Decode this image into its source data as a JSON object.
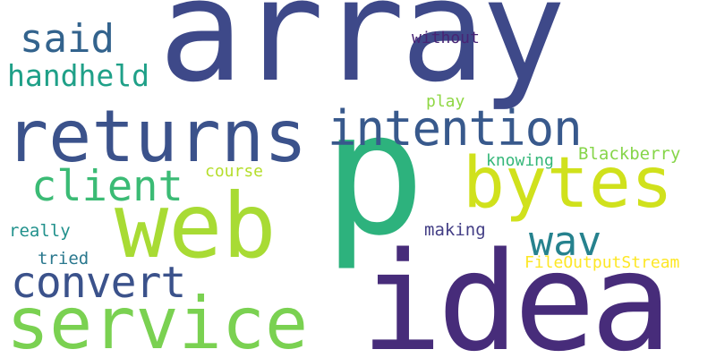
{
  "words": [
    {
      "text": "array",
      "color": "#3e4989"
    },
    {
      "text": "p",
      "color": "#2db27d"
    },
    {
      "text": "idea",
      "color": "#472c7a"
    },
    {
      "text": "web",
      "color": "#a8db34"
    },
    {
      "text": "service",
      "color": "#7ad151"
    },
    {
      "text": "returns",
      "color": "#3b528b"
    },
    {
      "text": "bytes",
      "color": "#d0e11c"
    },
    {
      "text": "intention",
      "color": "#38598c"
    },
    {
      "text": "convert",
      "color": "#3b528b"
    },
    {
      "text": "client",
      "color": "#3bbb75"
    },
    {
      "text": "wav",
      "color": "#26828e"
    },
    {
      "text": "said",
      "color": "#33638d"
    },
    {
      "text": "handheld",
      "color": "#1fa088"
    },
    {
      "text": "Blackberry",
      "color": "#86d549"
    },
    {
      "text": "without",
      "color": "#482475"
    },
    {
      "text": "play",
      "color": "#8fd744"
    },
    {
      "text": "course",
      "color": "#b5de2b"
    },
    {
      "text": "knowing",
      "color": "#35b779"
    },
    {
      "text": "really",
      "color": "#21918c"
    },
    {
      "text": "making",
      "color": "#433e85"
    },
    {
      "text": "tried",
      "color": "#2a788e"
    },
    {
      "text": "FileOutputStream",
      "color": "#fde725"
    }
  ]
}
